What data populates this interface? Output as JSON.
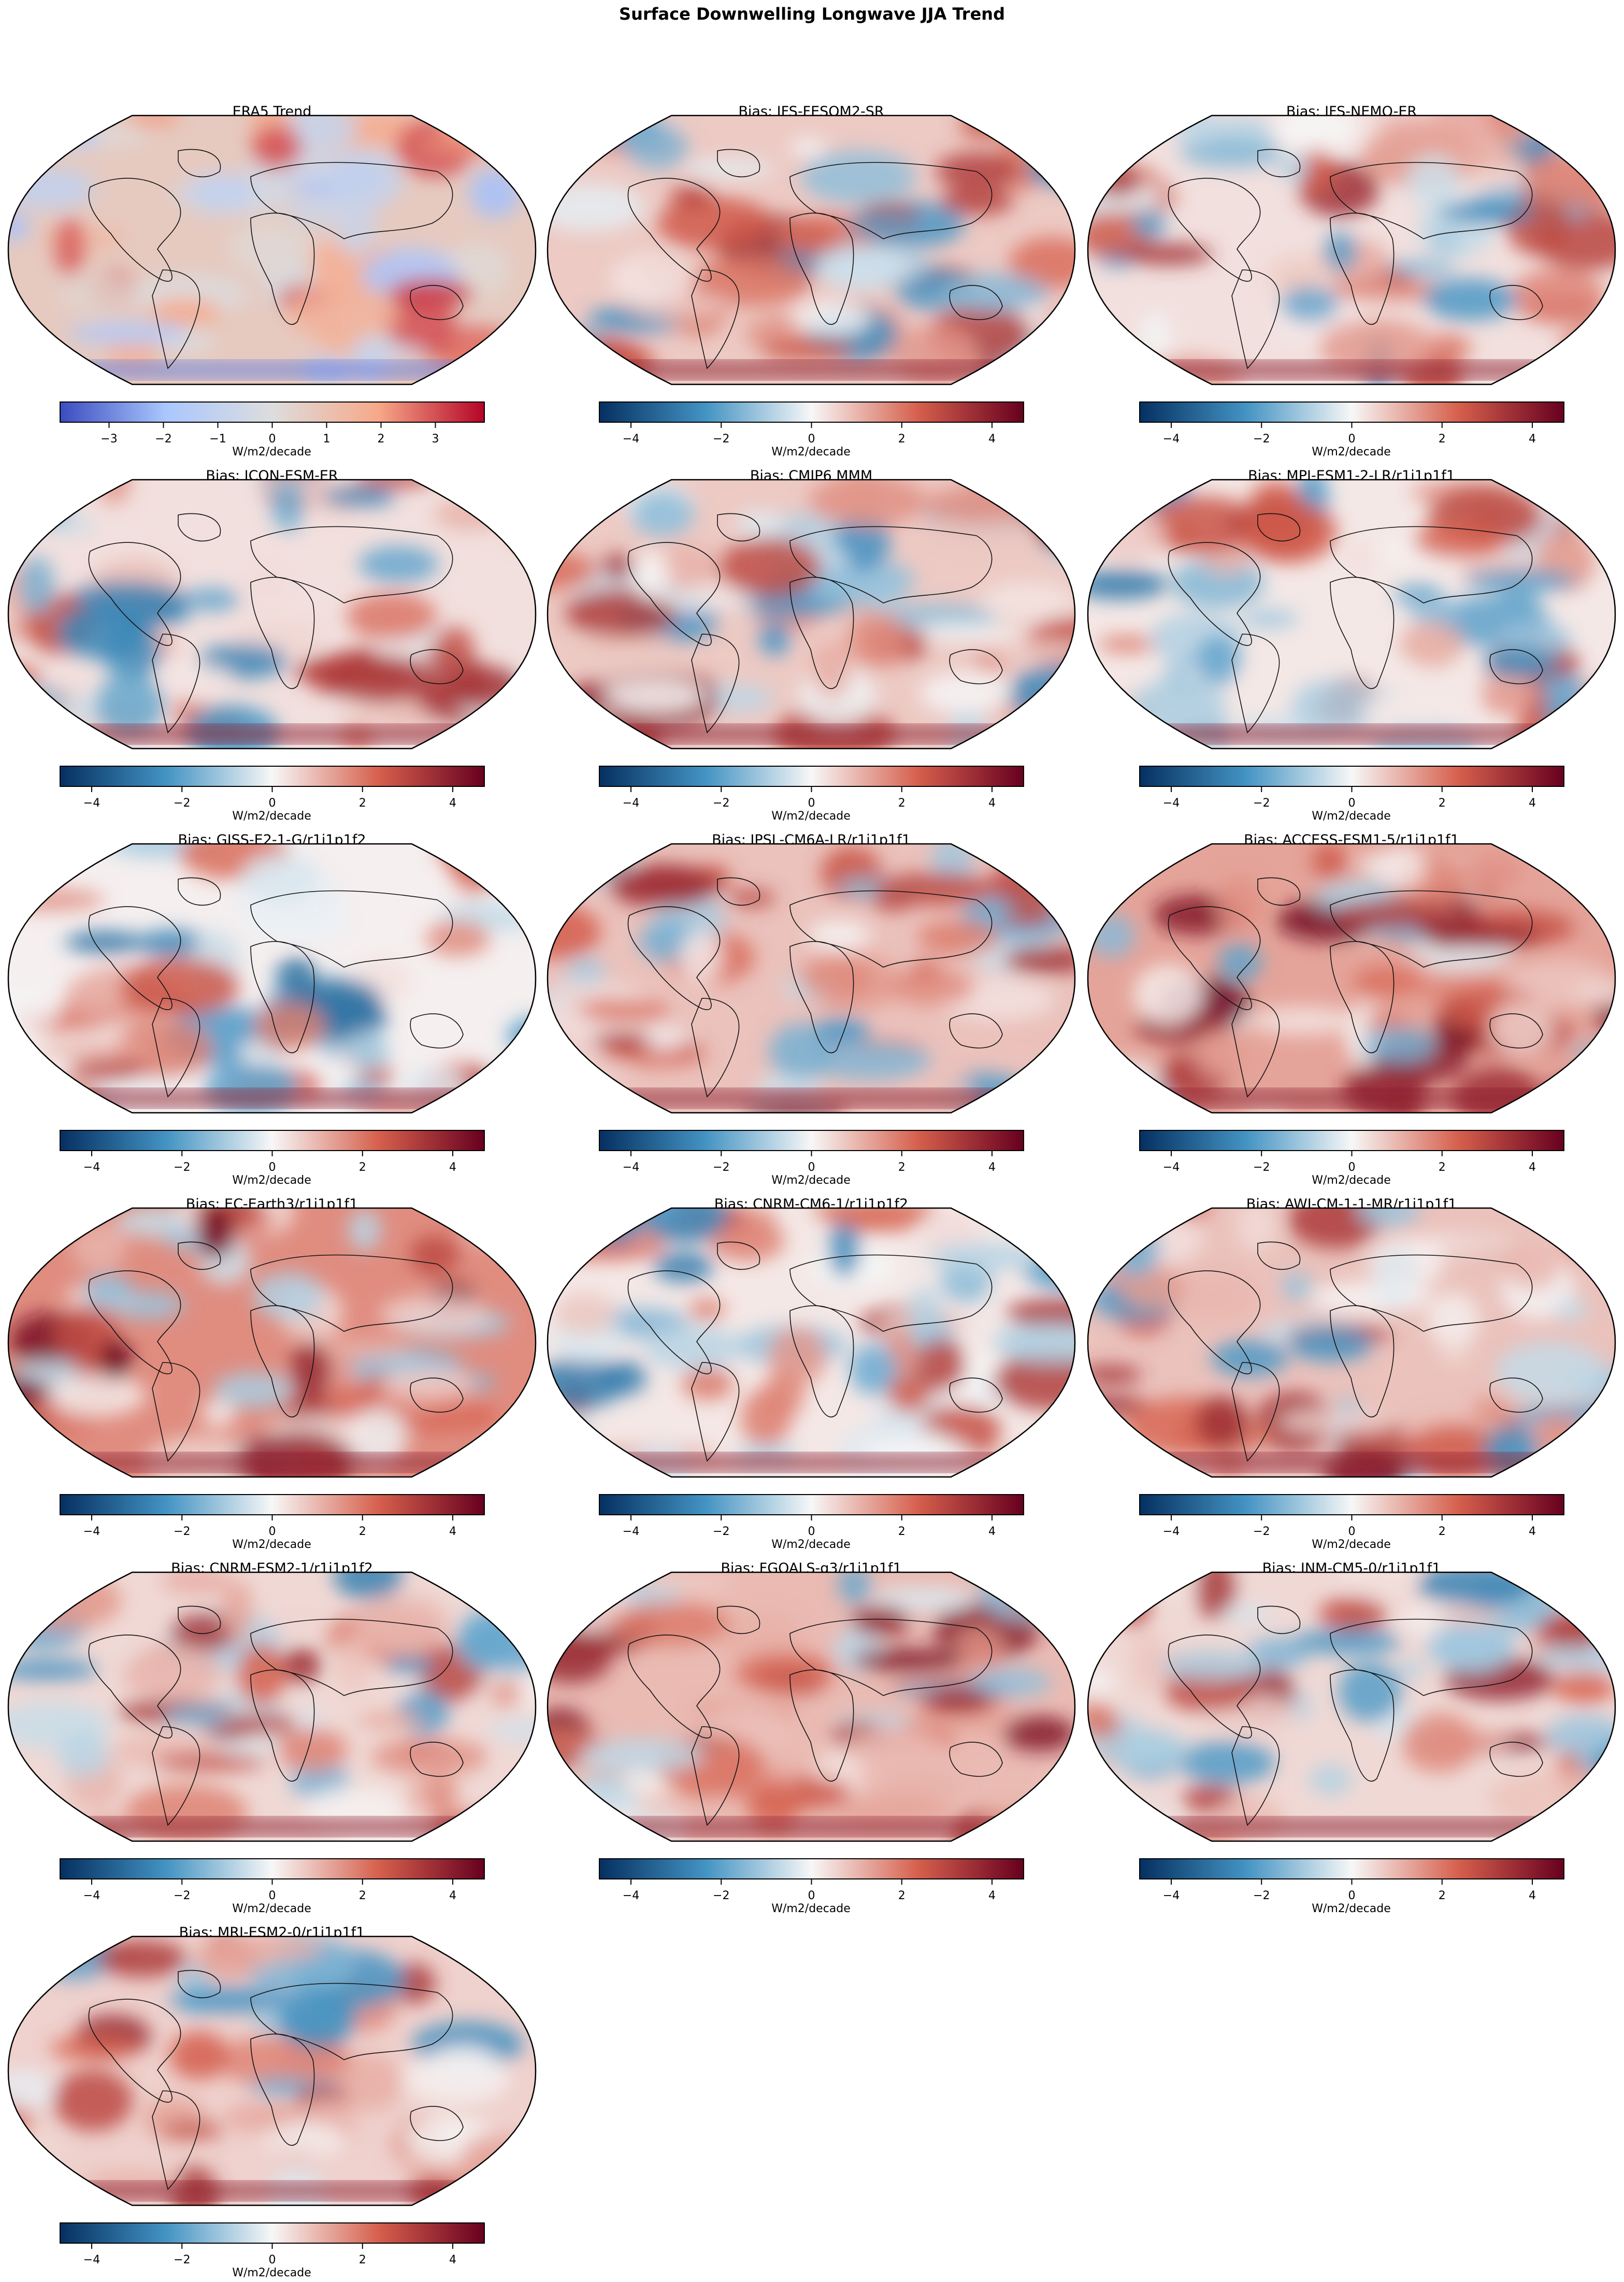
{
  "figure": {
    "title": "Surface Downwelling Longwave JJA Trend"
  },
  "chart_data": {
    "type": "heatmap",
    "subtype": "global map grid (Robinson projection) with per-panel colorbars",
    "title": "Surface Downwelling Longwave JJA Trend",
    "colorbar_label": "W/m2/decade",
    "reference_colorbar": {
      "cmap": "coolwarm",
      "range": [
        -3.9,
        3.9
      ],
      "ticks": [
        -3,
        -2,
        -1,
        0,
        1,
        2,
        3
      ],
      "colors": [
        "#3b4cc0",
        "#aac7fd",
        "#dddddd",
        "#f7a889",
        "#b40426"
      ]
    },
    "bias_colorbar": {
      "cmap": "RdBu_r",
      "range": [
        -4.7,
        4.7
      ],
      "ticks": [
        -4,
        -2,
        0,
        2,
        4
      ],
      "colors": [
        "#053061",
        "#4393c3",
        "#f7f7f7",
        "#d6604d",
        "#67001f"
      ]
    },
    "panels": [
      {
        "title": "ERA5 Trend",
        "colorbar": "reference",
        "tone": 0.35
      },
      {
        "title": "Bias: IFS-FESOM2-SR",
        "colorbar": "bias",
        "tone": 0.3
      },
      {
        "title": "Bias: IFS-NEMO-ER",
        "colorbar": "bias",
        "tone": 0.15
      },
      {
        "title": "Bias: ICON-ESM-ER",
        "colorbar": "bias",
        "tone": 0.15
      },
      {
        "title": "Bias: CMIP6 MMM",
        "colorbar": "bias",
        "tone": 0.3
      },
      {
        "title": "Bias: MPI-ESM1-2-LR/r1i1p1f1",
        "colorbar": "bias",
        "tone": 0.1
      },
      {
        "title": "Bias: GISS-E2-1-G/r1i1p1f2",
        "colorbar": "bias",
        "tone": 0.05
      },
      {
        "title": "Bias: IPSL-CM6A-LR/r1i1p1f1",
        "colorbar": "bias",
        "tone": 0.35
      },
      {
        "title": "Bias: ACCESS-ESM1-5/r1i1p1f1",
        "colorbar": "bias",
        "tone": 0.55
      },
      {
        "title": "Bias: EC-Earth3/r1i1p1f1",
        "colorbar": "bias",
        "tone": 0.7
      },
      {
        "title": "Bias: CNRM-CM6-1/r1i1p1f2",
        "colorbar": "bias",
        "tone": 0.1
      },
      {
        "title": "Bias: AWI-CM-1-1-MR/r1i1p1f1",
        "colorbar": "bias",
        "tone": 0.35
      },
      {
        "title": "Bias: CNRM-ESM2-1/r1i1p1f2",
        "colorbar": "bias",
        "tone": 0.2
      },
      {
        "title": "Bias: FGOALS-g3/r1i1p1f1",
        "colorbar": "bias",
        "tone": 0.4
      },
      {
        "title": "Bias: INM-CM5-0/r1i1p1f1",
        "colorbar": "bias",
        "tone": 0.2
      },
      {
        "title": "Bias: MRI-ESM2-0/r1i1p1f1",
        "colorbar": "bias",
        "tone": 0.25
      }
    ]
  }
}
